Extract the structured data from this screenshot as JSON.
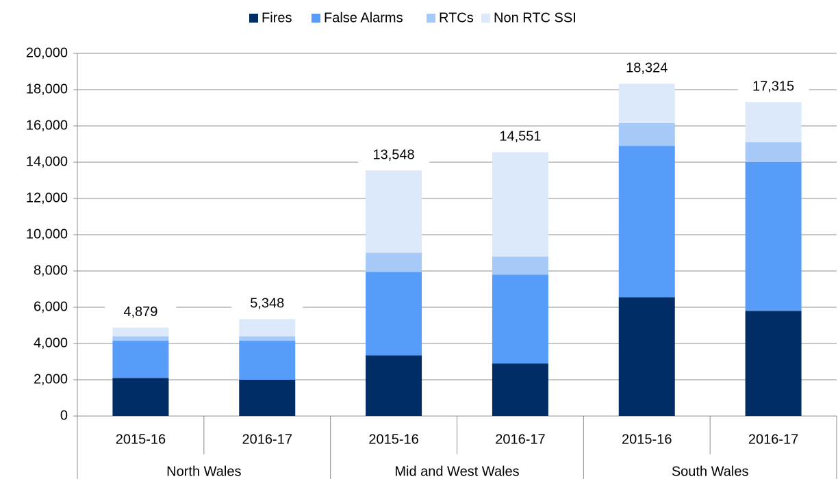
{
  "chart_data": {
    "type": "stacked-bar",
    "categories": [
      "2015-16",
      "2016-17",
      "2015-16",
      "2016-17",
      "2015-16",
      "2016-17"
    ],
    "groups": [
      "North Wales",
      "Mid and West Wales",
      "South Wales"
    ],
    "series": [
      {
        "name": "Fires",
        "color": "#002d66",
        "values": [
          2100,
          2000,
          3350,
          2900,
          6550,
          5800
        ]
      },
      {
        "name": "False Alarms",
        "color": "#569cf8",
        "values": [
          2050,
          2150,
          4600,
          4900,
          8350,
          8200
        ]
      },
      {
        "name": "RTCs",
        "color": "#a7c9f8",
        "values": [
          250,
          250,
          1050,
          1000,
          1250,
          1100
        ]
      },
      {
        "name": "Non RTC SSI",
        "color": "#dce9fb",
        "values": [
          479,
          948,
          4548,
          5751,
          2174,
          2215
        ]
      }
    ],
    "totals": {
      "values": [
        4879,
        5348,
        13548,
        14551,
        18324,
        17315
      ],
      "value_labels": [
        "4,879",
        "5,348",
        "13,548",
        "14,551",
        "18,324",
        "17,315"
      ]
    },
    "ylim": [
      0,
      20000
    ],
    "yticks": [
      0,
      {
        "value": 2000,
        "label": "2,000"
      },
      {
        "value": 4000,
        "label": "4,000"
      },
      {
        "value": 6000,
        "label": "6,000"
      },
      {
        "value": 8000,
        "label": "8,000"
      },
      {
        "value": 10000,
        "label": "10,000"
      },
      {
        "value": 12000,
        "label": "12,000"
      },
      {
        "value": 14000,
        "label": "14,000"
      },
      {
        "value": 16000,
        "label": "16,000"
      },
      {
        "value": 18000,
        "label": "18,000"
      },
      {
        "value": 20000,
        "label": "20,000"
      }
    ],
    "grid": true,
    "legend": "top"
  }
}
